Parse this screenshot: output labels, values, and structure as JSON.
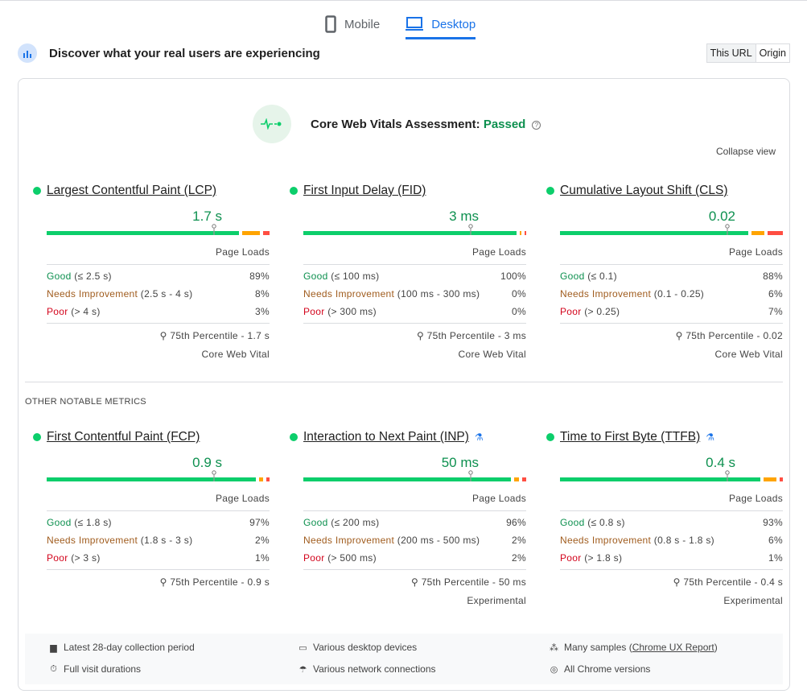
{
  "tabs": [
    {
      "label": "Mobile",
      "icon": "phone-icon"
    },
    {
      "label": "Desktop",
      "icon": "laptop-icon",
      "active": true
    }
  ],
  "header": {
    "title": "Discover what your real users are experiencing",
    "toggle": [
      "This URL",
      "Origin"
    ]
  },
  "assessment": {
    "prefix": "Core Web Vitals Assessment: ",
    "status": "Passed",
    "help": "?",
    "collapse": "Collapse view"
  },
  "other_label": "OTHER NOTABLE METRICS",
  "colors": {
    "good": "#0cce6b",
    "ni": "#ffa400",
    "poor": "#ff4e42"
  },
  "metrics": [
    {
      "title": "Largest Contentful Paint (LCP)",
      "value": "1.7 s",
      "meta": "Page Loads",
      "good": "Good",
      "good_r": " (≤ 2.5 s)",
      "good_p": "89%",
      "ni": "Needs Improvement",
      "ni_r": " (2.5 s - 4 s)",
      "ni_p": "8%",
      "poor": "Poor",
      "poor_r": " (> 4 s)",
      "poor_p": "3%",
      "pct": "75th Percentile - 1.7 s",
      "type": "Core Web Vital",
      "dist": [
        89,
        8,
        3
      ],
      "exp": false
    },
    {
      "title": "First Input Delay (FID)",
      "value": "3 ms",
      "meta": "Page Loads",
      "good": "Good",
      "good_r": " (≤ 100 ms)",
      "good_p": "100%",
      "ni": "Needs Improvement",
      "ni_r": " (100 ms - 300 ms)",
      "ni_p": "0%",
      "poor": "Poor",
      "poor_r": " (> 300 ms)",
      "poor_p": "0%",
      "pct": "75th Percentile - 3 ms",
      "type": "Core Web Vital",
      "dist": [
        100,
        0,
        0
      ],
      "exp": false
    },
    {
      "title": "Cumulative Layout Shift (CLS)",
      "value": "0.02",
      "meta": "Page Loads",
      "good": "Good",
      "good_r": " (≤ 0.1)",
      "good_p": "88%",
      "ni": "Needs Improvement",
      "ni_r": " (0.1 - 0.25)",
      "ni_p": "6%",
      "poor": "Poor",
      "poor_r": " (> 0.25)",
      "poor_p": "7%",
      "pct": "75th Percentile - 0.02",
      "type": "Core Web Vital",
      "dist": [
        88,
        6,
        7
      ],
      "exp": false
    },
    {
      "title": "First Contentful Paint (FCP)",
      "value": "0.9 s",
      "meta": "Page Loads",
      "good": "Good",
      "good_r": " (≤ 1.8 s)",
      "good_p": "97%",
      "ni": "Needs Improvement",
      "ni_r": " (1.8 s - 3 s)",
      "ni_p": "2%",
      "poor": "Poor",
      "poor_r": " (> 3 s)",
      "poor_p": "1%",
      "pct": "75th Percentile - 0.9 s",
      "type": "",
      "dist": [
        97,
        2,
        1
      ],
      "exp": false
    },
    {
      "title": "Interaction to Next Paint (INP)",
      "value": "50 ms",
      "meta": "Page Loads",
      "good": "Good",
      "good_r": " (≤ 200 ms)",
      "good_p": "96%",
      "ni": "Needs Improvement",
      "ni_r": " (200 ms - 500 ms)",
      "ni_p": "2%",
      "poor": "Poor",
      "poor_r": " (> 500 ms)",
      "poor_p": "2%",
      "pct": "75th Percentile - 50 ms",
      "type": "Experimental",
      "dist": [
        96,
        2,
        2
      ],
      "exp": true
    },
    {
      "title": "Time to First Byte (TTFB)",
      "value": "0.4 s",
      "meta": "Page Loads",
      "good": "Good",
      "good_r": " (≤ 0.8 s)",
      "good_p": "93%",
      "ni": "Needs Improvement",
      "ni_r": " (0.8 s - 1.8 s)",
      "ni_p": "6%",
      "poor": "Poor",
      "poor_r": " (> 1.8 s)",
      "poor_p": "1%",
      "pct": "75th Percentile - 0.4 s",
      "type": "Experimental",
      "dist": [
        93,
        6,
        1
      ],
      "exp": true
    }
  ],
  "footer": [
    {
      "text": "Latest 28-day collection period",
      "icon": "calendar-icon"
    },
    {
      "text": "Various desktop devices",
      "icon": "devices-icon"
    },
    {
      "text": "Many samples (",
      "link": "Chrome UX Report",
      "after": ")",
      "icon": "samples-icon"
    },
    {
      "text": "Full visit durations",
      "icon": "timer-icon"
    },
    {
      "text": "Various network connections",
      "icon": "network-icon"
    },
    {
      "text": "All Chrome versions",
      "icon": "chrome-icon"
    }
  ]
}
